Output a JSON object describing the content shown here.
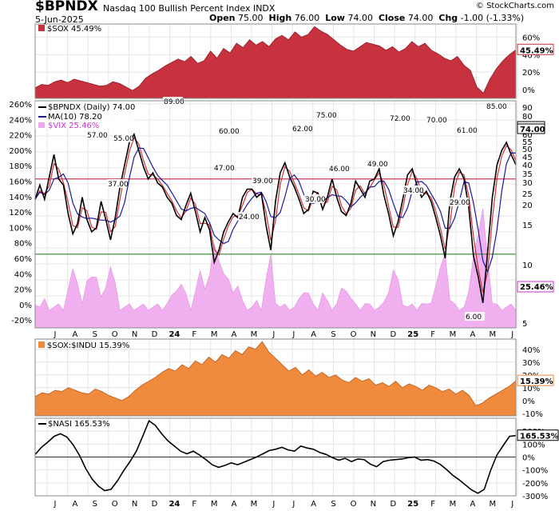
{
  "header": {
    "ticker": "$BPNDX",
    "description": "Nasdaq 100 Bullish Percent Index",
    "exchange": "INDX",
    "date": "5-Jun-2025",
    "brand": "© StockCharts.com",
    "open_label": "Open",
    "open": "75.00",
    "high_label": "High",
    "high": "76.00",
    "low_label": "Low",
    "low": "74.00",
    "close_label": "Close",
    "close": "74.00",
    "chg_label": "Chg",
    "chg": "-1.00 (-1.33%)"
  },
  "colors": {
    "sox_fill": "#c8323e",
    "bpndx_line": "#000000",
    "ma_line": "#1a1a9a",
    "ratio_line": "#d0303a",
    "vix_fill": "#f0a8ee",
    "vix_text": "#cc33cc",
    "ratio_fill": "#f08a3c",
    "red_hline": "#cc2244",
    "green_hline": "#2a8a2a",
    "grid": "#e4e4e4"
  },
  "x_axis_labels": [
    "J",
    "A",
    "S",
    "O",
    "N",
    "D",
    "24",
    "F",
    "M",
    "A",
    "M",
    "J",
    "J",
    "A",
    "S",
    "O",
    "N",
    "D",
    "25",
    "F",
    "M",
    "A",
    "M",
    "J"
  ],
  "chart_data": [
    {
      "type": "area",
      "legend": "$SOX 45.49%",
      "last_value_label": "45.49%",
      "y_ticks": [
        "60%",
        "40%",
        "20%",
        "0%"
      ],
      "ylim": [
        -10,
        75
      ],
      "values": [
        2,
        6,
        5,
        9,
        11,
        8,
        12,
        10,
        8,
        6,
        4,
        5,
        9,
        7,
        3,
        -1,
        4,
        13,
        18,
        22,
        27,
        31,
        35,
        32,
        38,
        30,
        33,
        44,
        36,
        47,
        42,
        53,
        48,
        57,
        51,
        55,
        49,
        58,
        62,
        57,
        66,
        60,
        63,
        72,
        67,
        63,
        57,
        51,
        46,
        44,
        49,
        54,
        52,
        50,
        45,
        49,
        43,
        47,
        55,
        49,
        53,
        45,
        41,
        36,
        33,
        38,
        28,
        22,
        3,
        -4,
        12,
        24,
        33,
        40,
        45.49
      ]
    },
    {
      "type": "line",
      "series": [
        {
          "name": "$BPNDX (Daily) 74.00",
          "last_value_label": "74.00",
          "values": [
            57,
            64,
            57,
            68,
            79,
            67,
            64,
            50,
            40,
            45,
            58,
            47,
            41,
            43,
            56,
            47,
            37,
            48,
            63,
            74,
            85,
            89,
            81,
            73,
            67,
            70,
            65,
            63,
            58,
            55,
            49,
            47,
            54,
            60,
            51,
            41,
            48,
            42,
            26,
            32,
            41,
            46,
            50,
            48,
            58,
            62,
            62,
            58,
            60,
            44,
            32,
            56,
            70,
            75,
            68,
            63,
            57,
            50,
            52,
            61,
            60,
            52,
            58,
            67,
            58,
            51,
            49,
            55,
            66,
            62,
            58,
            66,
            67,
            72,
            59,
            50,
            39,
            46,
            57,
            69,
            72,
            64,
            58,
            61,
            56,
            48,
            39,
            28,
            56,
            68,
            72,
            67,
            53,
            29,
            19,
            6,
            31,
            58,
            74,
            81,
            85,
            79,
            74
          ]
        },
        {
          "name": "MA(10) 78.20",
          "last_value_label": "78.20"
        }
      ],
      "overlay": {
        "name": "$VIX 25.46%",
        "last_value_label": "25.46%"
      },
      "annotations": [
        "89.00",
        "57.00",
        "55.00",
        "37.00",
        "60.00",
        "47.00",
        "24.00",
        "39.00",
        "62.00",
        "75.00",
        "30.00",
        "46.00",
        "49.00",
        "72.00",
        "34.00",
        "70.00",
        "61.00",
        "29.00",
        "85.00",
        "6.00"
      ],
      "left_ticks": [
        "260%",
        "240%",
        "220%",
        "200%",
        "180%",
        "160%",
        "140%",
        "120%",
        "100%",
        "80%",
        "60%",
        "40%",
        "20%",
        "0%",
        "-20%"
      ],
      "right_ticks": [
        "90",
        "80",
        "70",
        "60",
        "55",
        "50",
        "45",
        "40",
        "35",
        "30",
        "25",
        "20",
        "15",
        "10",
        "5"
      ],
      "ylim": [
        0,
        100
      ],
      "reference_lines": [
        67,
        30
      ]
    },
    {
      "type": "area",
      "legend": "$SOX:$INDU 15.39%",
      "last_value_label": "15.39%",
      "y_ticks": [
        "40%",
        "30%",
        "20%",
        "10%",
        "0%",
        "-10%"
      ],
      "ylim": [
        -12,
        48
      ],
      "values": [
        3,
        6,
        5,
        8,
        7,
        10,
        8,
        6,
        5,
        9,
        7,
        4,
        2,
        0,
        3,
        8,
        12,
        15,
        18,
        22,
        25,
        23,
        28,
        25,
        31,
        28,
        34,
        30,
        36,
        33,
        39,
        36,
        42,
        40,
        46,
        38,
        33,
        28,
        23,
        26,
        20,
        24,
        19,
        22,
        18,
        20,
        16,
        14,
        18,
        15,
        17,
        12,
        14,
        11,
        15,
        10,
        13,
        11,
        8,
        12,
        10,
        7,
        9,
        5,
        8,
        4,
        -4,
        -2,
        2,
        5,
        8,
        11,
        15.39
      ]
    },
    {
      "type": "line",
      "legend": "$NASI 165.53%",
      "last_value_label": "165.53%",
      "y_ticks": [
        "200%",
        "100%",
        "0%",
        "-100%",
        "-200%",
        "-300%"
      ],
      "ylim": [
        -300,
        300
      ],
      "values": [
        20,
        75,
        115,
        160,
        180,
        155,
        95,
        15,
        -90,
        -170,
        -225,
        -260,
        -250,
        -185,
        -105,
        -35,
        45,
        160,
        280,
        245,
        180,
        125,
        85,
        45,
        25,
        45,
        15,
        -20,
        -60,
        -80,
        -65,
        -45,
        -60,
        -40,
        -20,
        0,
        25,
        50,
        60,
        75,
        55,
        45,
        85,
        70,
        60,
        35,
        20,
        -5,
        -25,
        -10,
        -35,
        -15,
        -20,
        -55,
        -75,
        -35,
        -25,
        -20,
        -15,
        -5,
        0,
        -25,
        -20,
        -30,
        -55,
        -95,
        -140,
        -175,
        -215,
        -255,
        -280,
        -250,
        -105,
        15,
        90,
        160,
        165.53
      ]
    }
  ]
}
